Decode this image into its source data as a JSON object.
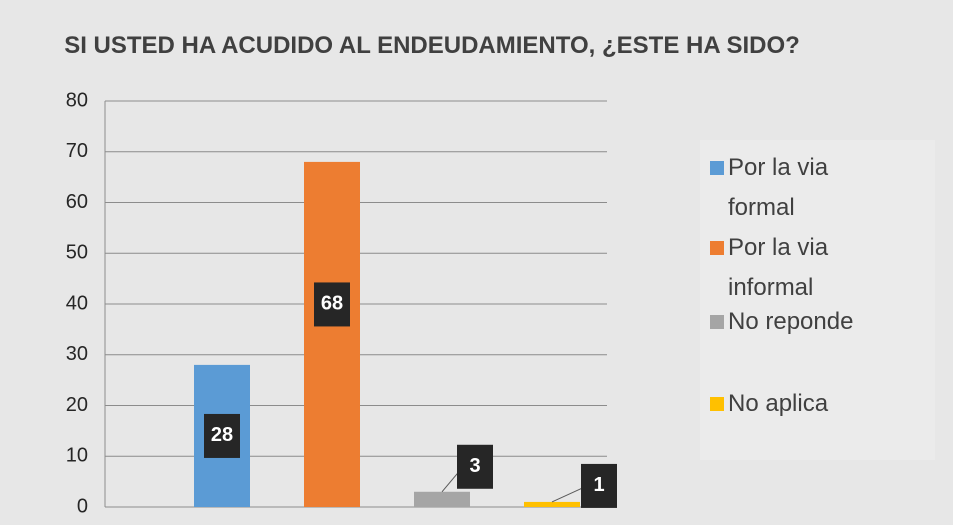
{
  "chart_data": {
    "type": "bar",
    "title": "SI USTED HA ACUDIDO AL ENDEUDAMIENTO, ¿ESTE HA SIDO?",
    "categories": [
      "Por la via formal",
      "Por la via informal",
      "No reponde",
      "No aplica"
    ],
    "values": [
      28,
      68,
      3,
      1
    ],
    "colors": [
      "#5b9bd5",
      "#ed7d31",
      "#a5a5a5",
      "#ffc000"
    ],
    "ylim": [
      0,
      80
    ],
    "yticks": [
      0,
      10,
      20,
      30,
      40,
      50,
      60,
      70,
      80
    ],
    "grid": true,
    "legend": "right"
  }
}
